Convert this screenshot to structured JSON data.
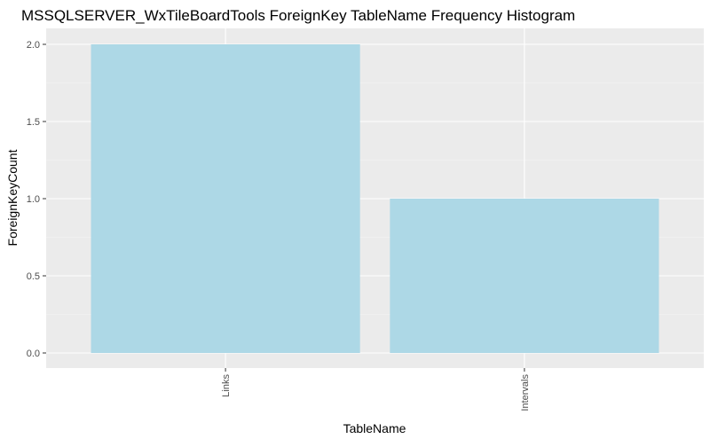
{
  "chart_data": {
    "type": "bar",
    "title": "MSSQLSERVER_WxTileBoardTools ForeignKey TableName Frequency Histogram",
    "xlabel": "TableName",
    "ylabel": "ForeignKeyCount",
    "categories": [
      "Links",
      "Intervals"
    ],
    "values": [
      2,
      1
    ],
    "ylim": [
      0,
      2.1
    ],
    "yticks": [
      0,
      0.5,
      1,
      1.5,
      2
    ],
    "ytick_labels": [
      "0.0",
      "0.5",
      "1.0",
      "1.5",
      "2.0"
    ],
    "x_tick_rotation": "vertical",
    "grid": true,
    "legend": "none",
    "colors": {
      "bar": "#add8e6",
      "panel": "#ebebeb",
      "grid_major": "#ffffff",
      "grid_minor": "#f5f5f5"
    }
  }
}
